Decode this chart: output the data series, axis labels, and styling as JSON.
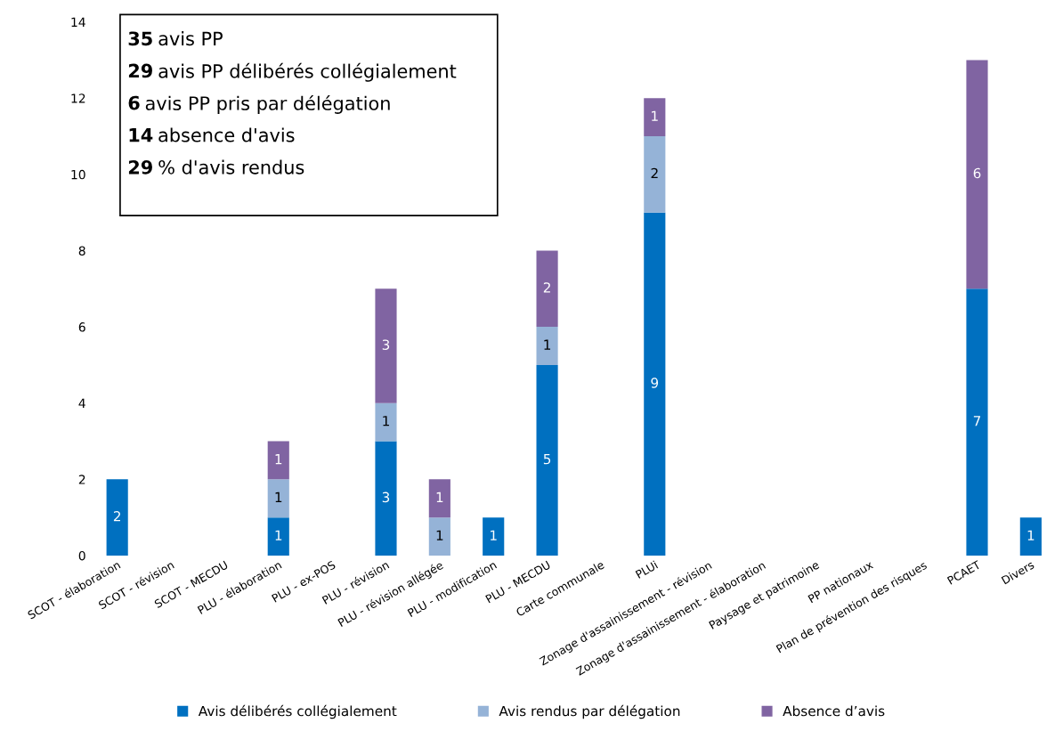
{
  "chart_data": {
    "type": "bar",
    "stacked": true,
    "categories": [
      "SCOT - élaboration",
      "SCOT - révision",
      "SCOT - MECDU",
      "PLU - élaboration",
      "PLU - ex-POS",
      "PLU - révision",
      "PLU - révision allégée",
      "PLU - modification",
      "PLU - MECDU",
      "Carte communale",
      "PLUi",
      "Zonage d'assainissement - révision",
      "Zonage d'assainissement - élaboration",
      "Paysage et patrimoine",
      "PP nationaux",
      "Plan de prévention des risques",
      "PCAET",
      "Divers"
    ],
    "series": [
      {
        "name": "Avis délibérés collégialement",
        "color": "#0070c0",
        "values": [
          2,
          0,
          0,
          1,
          0,
          3,
          0,
          1,
          5,
          0,
          9,
          0,
          0,
          0,
          0,
          0,
          7,
          1
        ],
        "value_labels": [
          "2",
          null,
          null,
          "1",
          null,
          "3",
          null,
          "1",
          "5",
          null,
          "9",
          null,
          null,
          null,
          null,
          null,
          "7",
          "1"
        ]
      },
      {
        "name": "Avis rendus par délégation",
        "color": "#95b3d7",
        "values": [
          0,
          0,
          0,
          1,
          0,
          1,
          1,
          0,
          1,
          0,
          2,
          0,
          0,
          0,
          0,
          0,
          0,
          0
        ],
        "value_labels": [
          null,
          null,
          null,
          "1",
          null,
          "1",
          "1",
          null,
          "1",
          null,
          "2",
          null,
          null,
          null,
          null,
          null,
          null,
          null
        ]
      },
      {
        "name": "Absence d’avis",
        "color": "#8064a2",
        "values": [
          0,
          0,
          0,
          1,
          0,
          3,
          1,
          0,
          2,
          0,
          1,
          0,
          0,
          0,
          0,
          0,
          6,
          0
        ],
        "value_labels": [
          null,
          null,
          null,
          "1",
          null,
          "3",
          "1",
          null,
          "2",
          null,
          "1",
          null,
          null,
          null,
          null,
          null,
          "6",
          null
        ]
      }
    ],
    "ylim": [
      0,
      14
    ],
    "yticks": [
      0,
      2,
      4,
      6,
      8,
      10,
      12,
      14
    ],
    "grid": false,
    "legend": "bottom",
    "annotations": [
      "35 avis PP",
      "29 avis PP délibérés collégialement",
      "6 avis PP pris par délégation",
      "14 absence d'avis",
      "29 % d'avis rendus"
    ]
  }
}
